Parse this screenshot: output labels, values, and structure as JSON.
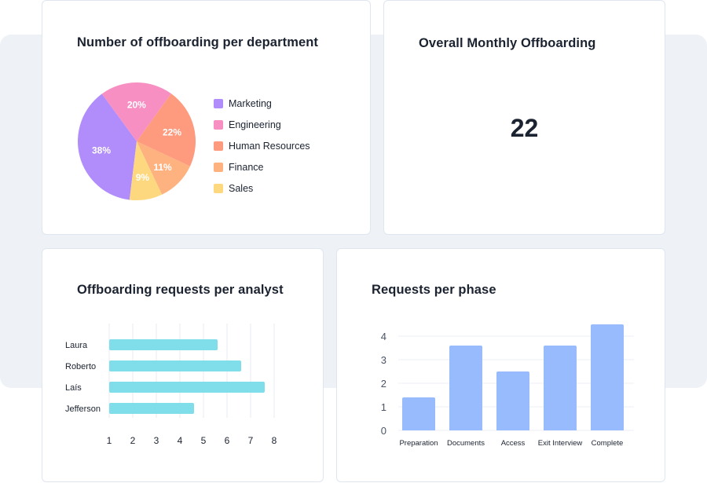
{
  "cards": {
    "department": {
      "title": "Number of offboarding per department"
    },
    "monthly": {
      "title": "Overall Monthly Offboarding",
      "value": "22"
    },
    "analyst": {
      "title": "Offboarding requests per analyst"
    },
    "phase": {
      "title": "Requests per phase"
    }
  },
  "chart_data": [
    {
      "type": "pie",
      "title": "Number of offboarding per department",
      "labels": [
        "Marketing",
        "Engineering",
        "Human Resources",
        "Finance",
        "Sales"
      ],
      "values": [
        38,
        20,
        22,
        11,
        9
      ],
      "value_labels": [
        "38%",
        "20%",
        "22%",
        "11%",
        "9%"
      ],
      "colors": [
        "#b18cfb",
        "#f78fc3",
        "#fe9a7d",
        "#feb27f",
        "#fed87f"
      ],
      "legend": "right"
    },
    {
      "type": "bar",
      "orientation": "horizontal",
      "title": "Offboarding requests per analyst",
      "categories": [
        "Laura",
        "Roberto",
        "Laís",
        "Jefferson"
      ],
      "values": [
        5.6,
        6.6,
        7.6,
        4.6
      ],
      "xlim": [
        1,
        8
      ],
      "xticks": [
        "1",
        "2",
        "3",
        "4",
        "5",
        "6",
        "7",
        "8"
      ],
      "color": "#7fdeea",
      "grid": true
    },
    {
      "type": "bar",
      "title": "Requests per phase",
      "categories": [
        "Preparation",
        "Documents",
        "Access",
        "Exit Interview",
        "Complete"
      ],
      "values": [
        1.4,
        3.6,
        2.5,
        3.6,
        4.5
      ],
      "ylim": [
        0,
        4
      ],
      "yticks": [
        "0",
        "1",
        "2",
        "3",
        "4"
      ],
      "color": "#97bbfd",
      "grid": true
    }
  ]
}
